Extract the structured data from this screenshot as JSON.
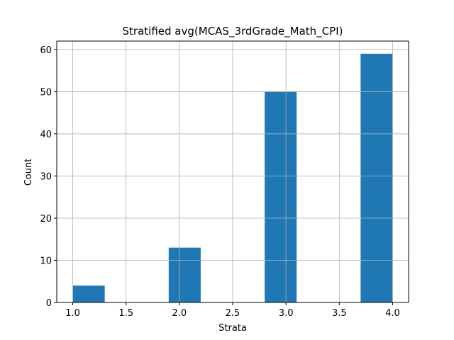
{
  "chart_data": {
    "type": "bar",
    "title": "Stratified avg(MCAS_3rdGrade_Math_CPI)",
    "xlabel": "Strata",
    "ylabel": "Count",
    "bars": [
      {
        "x_start": 1.0,
        "x_end": 1.3,
        "value": 4
      },
      {
        "x_start": 1.9,
        "x_end": 2.2,
        "value": 13
      },
      {
        "x_start": 2.8,
        "x_end": 3.1,
        "value": 50
      },
      {
        "x_start": 3.7,
        "x_end": 4.0,
        "value": 59
      }
    ],
    "xlim": [
      0.85,
      4.15
    ],
    "ylim": [
      0,
      62
    ],
    "x_ticks": [
      "1.0",
      "1.5",
      "2.0",
      "2.5",
      "3.0",
      "3.5",
      "4.0"
    ],
    "y_ticks": [
      "0",
      "10",
      "20",
      "30",
      "40",
      "50",
      "60"
    ],
    "grid": true,
    "bar_color": "#1f77b4",
    "grid_color": "#b0b0b0"
  }
}
